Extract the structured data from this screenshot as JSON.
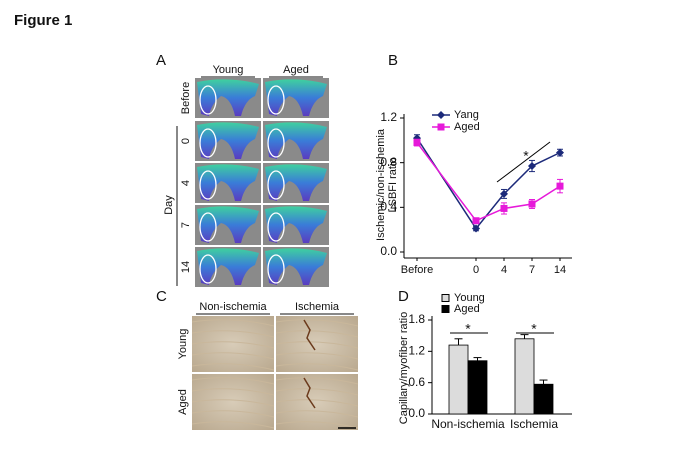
{
  "title": "Figure 1",
  "panel_a": {
    "label": "A",
    "columns": [
      "Young",
      "Aged"
    ],
    "rows": [
      "Before",
      "0",
      "4",
      "7",
      "14"
    ],
    "row_group": "Day"
  },
  "panel_c": {
    "label": "C",
    "columns": [
      "Non-ischemia",
      "Ischemia"
    ],
    "rows": [
      "Young",
      "Aged"
    ]
  },
  "chart_data": [
    {
      "panel_label": "B",
      "type": "line",
      "y_label": [
        "Ischemic/non-ischemia",
        "LSBFI  ratio"
      ],
      "categories": [
        "Before",
        "0",
        "4",
        "7",
        "14"
      ],
      "series": [
        {
          "name": "Yang",
          "color": "#1c2a7a",
          "marker": "diamond",
          "values": [
            1.02,
            0.21,
            0.52,
            0.77,
            0.89
          ],
          "errors": [
            0.03,
            0.02,
            0.04,
            0.05,
            0.03
          ]
        },
        {
          "name": "Aged",
          "color": "#e619d9",
          "marker": "square",
          "values": [
            0.98,
            0.28,
            0.39,
            0.43,
            0.59
          ],
          "errors": [
            0.03,
            0.02,
            0.05,
            0.04,
            0.06
          ]
        }
      ],
      "ylim": [
        0,
        1.2
      ],
      "yticks": [
        {
          "value": 0,
          "label": "0.0"
        },
        0.4,
        0.8,
        1.2
      ],
      "annotations": [
        "*"
      ]
    },
    {
      "panel_label": "D",
      "type": "bar",
      "y_label": "Capillary/myofiber ratio",
      "categories": [
        "Non-ischemia",
        "Ischemia"
      ],
      "series": [
        {
          "name": "Young",
          "color": "#dcdcdc",
          "values": [
            1.32,
            1.44
          ],
          "errors": [
            0.12,
            0.08
          ]
        },
        {
          "name": "Aged",
          "color": "#000000",
          "values": [
            1.02,
            0.57
          ],
          "errors": [
            0.06,
            0.08
          ]
        }
      ],
      "ylim": [
        0,
        1.8
      ],
      "yticks": [
        {
          "value": 0,
          "label": "0.0"
        },
        0.6,
        1.2,
        1.8
      ],
      "annotations": [
        "*",
        "*"
      ]
    }
  ]
}
